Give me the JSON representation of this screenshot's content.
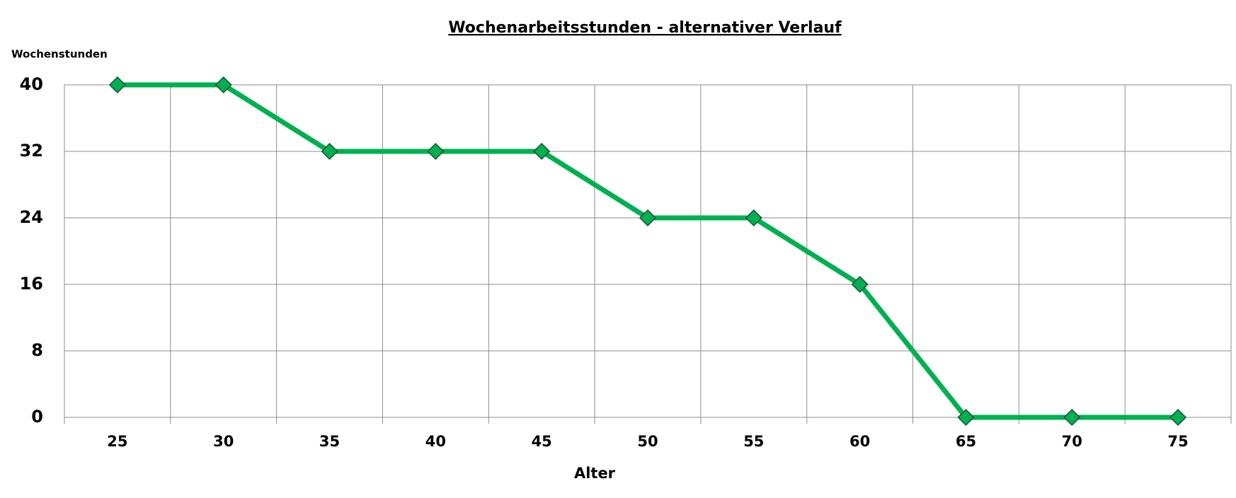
{
  "chart_data": {
    "type": "line",
    "title": "Wochenarbeitsstunden - alternativer Verlauf",
    "y_label": "Wochenstunden",
    "x_label": "Alter",
    "categories": [
      "25",
      "30",
      "35",
      "40",
      "45",
      "50",
      "55",
      "60",
      "65",
      "70",
      "75"
    ],
    "values": [
      40,
      40,
      32,
      32,
      32,
      24,
      24,
      16,
      0,
      0,
      0
    ],
    "color": "#00b050",
    "ylim": [
      0,
      40
    ],
    "yticks": [
      0,
      8,
      16,
      24,
      32,
      40
    ],
    "grid": true
  }
}
